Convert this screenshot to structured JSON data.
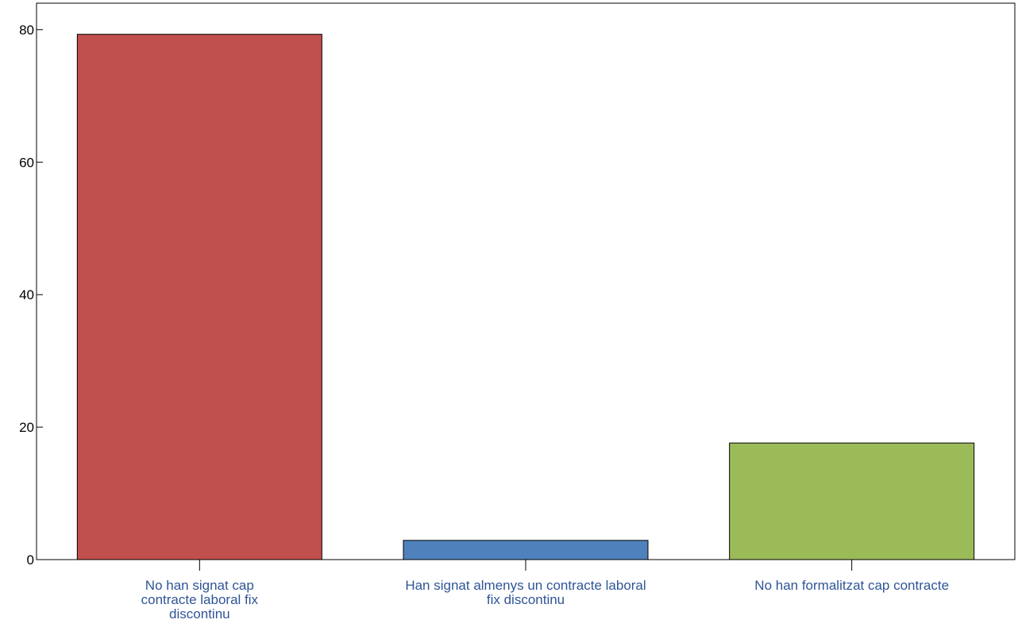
{
  "chart_data": {
    "type": "bar",
    "categories": [
      "No han signat cap contracte laboral fix discontinu",
      "Han signat almenys un contracte laboral fix discontinu",
      "No han formalitzat cap contracte"
    ],
    "category_label_lines": [
      [
        "No han signat cap",
        "contracte laboral fix",
        "discontinu"
      ],
      [
        "Han signat almenys un contracte laboral",
        "fix discontinu"
      ],
      [
        "No han formalitzat cap contracte"
      ]
    ],
    "values": [
      79.3,
      2.9,
      17.6
    ],
    "colors": [
      "#C0504D",
      "#4F81BD",
      "#9BBB59"
    ],
    "label_color": "#2F5597",
    "title": "",
    "xlabel": "",
    "ylabel": "",
    "ylim": [
      0,
      84
    ],
    "yticks": [
      0,
      20,
      40,
      60,
      80
    ],
    "grid": false,
    "legend": "none"
  }
}
